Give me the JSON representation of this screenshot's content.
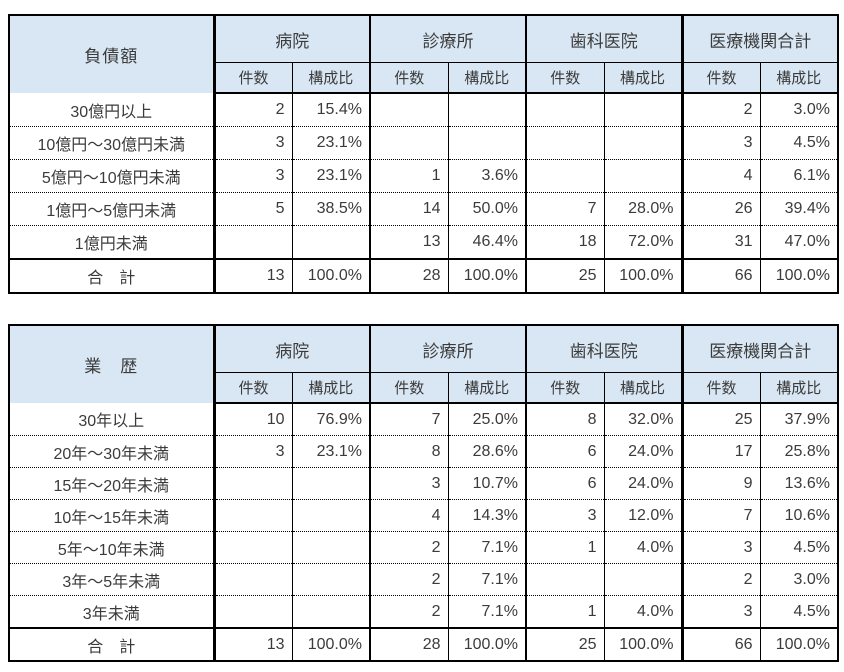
{
  "colors": {
    "header_bg": "#D9E7F4",
    "border": "#000000",
    "text": "#3B3B3B"
  },
  "chart_data": [
    {
      "type": "table",
      "title": "負債額",
      "column_groups": [
        "病院",
        "診療所",
        "歯科医院",
        "医療機関合計"
      ],
      "sub_columns": [
        "件数",
        "構成比"
      ],
      "rows": [
        {
          "label": "30億円以上",
          "cells": [
            "2",
            "15.4%",
            "",
            "",
            "",
            "",
            "2",
            "3.0%"
          ]
        },
        {
          "label": "10億円～30億円未満",
          "cells": [
            "3",
            "23.1%",
            "",
            "",
            "",
            "",
            "3",
            "4.5%"
          ]
        },
        {
          "label": "5億円～10億円未満",
          "cells": [
            "3",
            "23.1%",
            "1",
            "3.6%",
            "",
            "",
            "4",
            "6.1%"
          ]
        },
        {
          "label": "1億円～5億円未満",
          "cells": [
            "5",
            "38.5%",
            "14",
            "50.0%",
            "7",
            "28.0%",
            "26",
            "39.4%"
          ]
        },
        {
          "label": "1億円未満",
          "cells": [
            "",
            "",
            "13",
            "46.4%",
            "18",
            "72.0%",
            "31",
            "47.0%"
          ]
        },
        {
          "label": "合　計",
          "is_total": true,
          "cells": [
            "13",
            "100.0%",
            "28",
            "100.0%",
            "25",
            "100.0%",
            "66",
            "100.0%"
          ]
        }
      ]
    },
    {
      "type": "table",
      "title": "業　歴",
      "column_groups": [
        "病院",
        "診療所",
        "歯科医院",
        "医療機関合計"
      ],
      "sub_columns": [
        "件数",
        "構成比"
      ],
      "rows": [
        {
          "label": "30年以上",
          "cells": [
            "10",
            "76.9%",
            "7",
            "25.0%",
            "8",
            "32.0%",
            "25",
            "37.9%"
          ]
        },
        {
          "label": "20年～30年未満",
          "cells": [
            "3",
            "23.1%",
            "8",
            "28.6%",
            "6",
            "24.0%",
            "17",
            "25.8%"
          ]
        },
        {
          "label": "15年～20年未満",
          "cells": [
            "",
            "",
            "3",
            "10.7%",
            "6",
            "24.0%",
            "9",
            "13.6%"
          ]
        },
        {
          "label": "10年～15年未満",
          "cells": [
            "",
            "",
            "4",
            "14.3%",
            "3",
            "12.0%",
            "7",
            "10.6%"
          ]
        },
        {
          "label": "5年～10年未満",
          "cells": [
            "",
            "",
            "2",
            "7.1%",
            "1",
            "4.0%",
            "3",
            "4.5%"
          ]
        },
        {
          "label": "3年～5年未満",
          "cells": [
            "",
            "",
            "2",
            "7.1%",
            "",
            "",
            "2",
            "3.0%"
          ]
        },
        {
          "label": "3年未満",
          "cells": [
            "",
            "",
            "2",
            "7.1%",
            "1",
            "4.0%",
            "3",
            "4.5%"
          ]
        },
        {
          "label": "合　計",
          "is_total": true,
          "cells": [
            "13",
            "100.0%",
            "28",
            "100.0%",
            "25",
            "100.0%",
            "66",
            "100.0%"
          ]
        }
      ]
    }
  ]
}
